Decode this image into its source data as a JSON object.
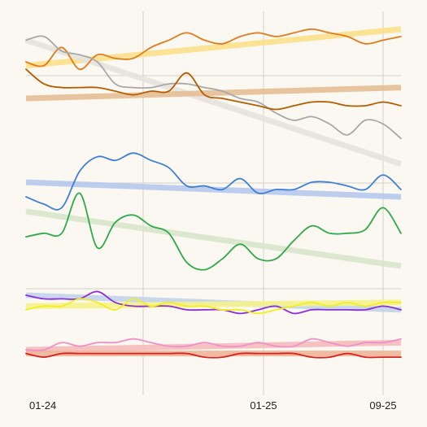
{
  "chart_data": {
    "type": "line",
    "x": [
      "01-24",
      "02-24",
      "03-24",
      "04-24",
      "05-24",
      "06-24",
      "07-24",
      "08-24",
      "09-24",
      "10-24",
      "11-24",
      "12-24",
      "01-25",
      "02-25",
      "03-25",
      "04-25",
      "05-25",
      "06-25",
      "07-25",
      "08-25",
      "09-25",
      "10-25"
    ],
    "x_tick_labels": [
      "01-24",
      "01-25",
      "09-25"
    ],
    "ylim": [
      0,
      100
    ],
    "grid": true,
    "legend": "none",
    "panels": 3,
    "series": [
      {
        "color": "#e07b1c",
        "trend_color": "#fde08a",
        "panel": 0,
        "values": [
          87,
          86,
          91,
          85,
          89,
          88,
          88,
          91,
          93,
          95,
          93,
          92,
          94,
          95,
          94,
          95,
          96,
          95,
          94,
          92,
          93,
          94
        ],
        "trend": [
          86,
          96
        ]
      },
      {
        "color": "#a8a8a8",
        "trend_color": "#e6e4df",
        "panel": 0,
        "values": [
          93,
          94,
          90,
          89,
          87,
          81,
          80,
          80,
          81,
          81,
          80,
          79,
          77,
          76,
          73,
          71,
          72,
          70,
          67,
          71,
          70,
          66
        ],
        "trend": [
          93,
          59
        ]
      },
      {
        "color": "#b35c00",
        "trend_color": "#e5bf96",
        "panel": 0,
        "values": [
          85,
          81,
          80,
          80,
          80,
          79,
          78,
          79,
          79,
          84,
          78,
          77,
          76,
          75,
          74,
          75,
          76,
          76,
          75,
          75,
          76,
          75
        ],
        "trend": [
          77,
          80
        ]
      },
      {
        "color": "#3f7fd6",
        "trend_color": "#b7c9ee",
        "panel": 1,
        "values": [
          50,
          48,
          47,
          57,
          61,
          60,
          62,
          60,
          58,
          53,
          53,
          52,
          55,
          51,
          52,
          52,
          54,
          54,
          53,
          52,
          56,
          52
        ],
        "trend": [
          54,
          50
        ]
      },
      {
        "color": "#2eaa4a",
        "trend_color": "#d8e7cc",
        "panel": 1,
        "values": [
          39,
          40,
          40,
          51,
          36,
          43,
          45,
          42,
          40,
          32,
          30,
          33,
          37,
          33,
          33,
          38,
          42,
          40,
          40,
          41,
          47,
          40
        ],
        "trend": [
          46,
          31
        ]
      },
      {
        "color": "#8a2fd6",
        "trend_color": "#c4d4ec",
        "panel": 2,
        "values": [
          23,
          22,
          22,
          22,
          24,
          21,
          20,
          20,
          20,
          19,
          19,
          19,
          18,
          19,
          20,
          18,
          19,
          19,
          19,
          19,
          20,
          19
        ],
        "trend": [
          23,
          19
        ]
      },
      {
        "color": "#f2ee20",
        "trend_color": "#f6f38c",
        "panel": 2,
        "values": [
          19,
          20,
          20,
          22,
          21,
          19,
          22,
          20,
          21,
          20,
          20,
          19,
          19,
          18,
          19,
          20,
          21,
          20,
          21,
          20,
          21,
          21
        ],
        "trend": [
          20,
          21
        ]
      },
      {
        "color": "#f090c8",
        "trend_color": "#f5bcbc",
        "panel": 2,
        "values": [
          8,
          8,
          10,
          9,
          10,
          10,
          11,
          10,
          9,
          9,
          10,
          9,
          9,
          10,
          9,
          9,
          11,
          10,
          9,
          10,
          10,
          11
        ],
        "trend": [
          8,
          10
        ]
      },
      {
        "color": "#d62020",
        "trend_color": "#efb598",
        "panel": 2,
        "values": [
          7,
          6,
          7,
          7,
          7,
          7,
          7,
          7,
          7,
          7,
          6,
          6,
          7,
          7,
          7,
          7,
          6,
          6,
          7,
          6,
          6,
          6
        ],
        "trend": [
          7,
          7
        ]
      }
    ]
  }
}
